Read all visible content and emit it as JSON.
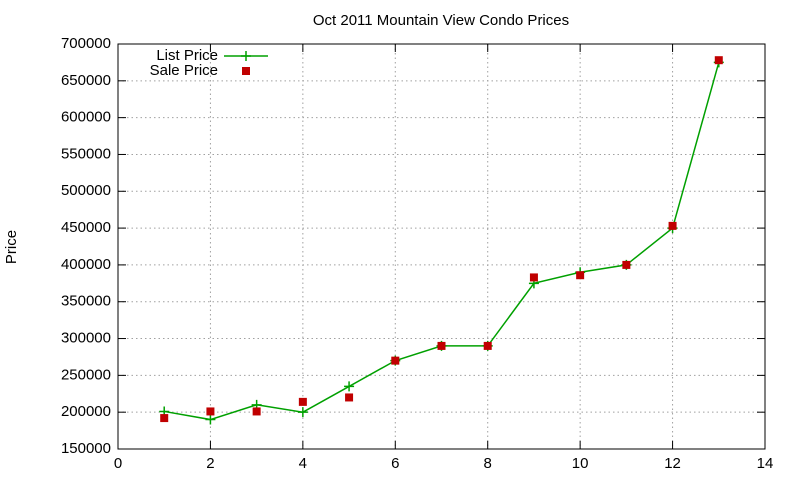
{
  "chart_data": {
    "type": "line",
    "title": "Oct 2011 Mountain View Condo Prices",
    "y_label": "Price",
    "x": [
      1,
      2,
      3,
      4,
      5,
      6,
      7,
      8,
      9,
      10,
      11,
      12,
      13
    ],
    "series": [
      {
        "name": "List Price",
        "color": "#00a000",
        "line": true,
        "marker": "plus",
        "values": [
          201000,
          190000,
          210000,
          200000,
          235000,
          270000,
          290000,
          290000,
          375000,
          390000,
          400000,
          450000,
          675000
        ]
      },
      {
        "name": "Sale Price",
        "color": "#c00000",
        "line": false,
        "marker": "square",
        "values": [
          192000,
          201000,
          201000,
          214000,
          220000,
          270000,
          290000,
          290000,
          383000,
          386000,
          400000,
          453000,
          678000
        ]
      }
    ],
    "xlim": [
      0,
      14
    ],
    "xticks": [
      0,
      2,
      4,
      6,
      8,
      10,
      12,
      14
    ],
    "ylim": [
      150000,
      700000
    ],
    "yticks": [
      150000,
      200000,
      250000,
      300000,
      350000,
      400000,
      450000,
      500000,
      550000,
      600000,
      650000,
      700000
    ],
    "grid": true,
    "legend": "top-left"
  }
}
